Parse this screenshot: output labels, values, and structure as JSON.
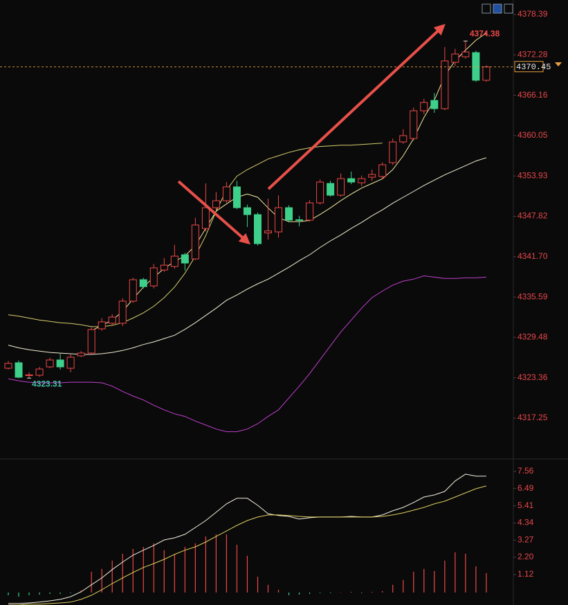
{
  "chart_data": [
    {
      "type": "candlestick",
      "ylim": [
        4311.38,
        4380.59
      ],
      "yticks": [
        4378.39,
        4372.28,
        4366.16,
        4360.05,
        4353.93,
        4347.82,
        {
          "value": 4341.7,
          "label": "4341.70"
        },
        4335.59,
        4329.48,
        4323.36,
        4317.25
      ],
      "up_color": "#f04848",
      "down_color": "#3ed08a",
      "tick_color": "#e8464a",
      "current_price": 4370.45,
      "current_color": "#e8a040",
      "high_label": 4374.38,
      "low_label": 4323.31,
      "high_color": "#f04848",
      "low_color": "#46c0a8",
      "open": [
        4324.8,
        4325.64,
        4323.7,
        4323.75,
        4325.01,
        4326.06,
        4324.8,
        4326.69,
        4327.11,
        4330.78,
        4331.62,
        4331.62,
        4334.97,
        4338.22,
        4337.28,
        4339.69,
        4340.22,
        4342.0,
        4341.37,
        4345.98,
        4349.13,
        4350.18,
        4352.28,
        4349.13,
        4348.08,
        4345.3,
        4345.46,
        4349.13,
        4347.3,
        4347.24,
        4349.86,
        4352.8,
        4351.02,
        4353.53,
        4352.9,
        4353.74,
        4353.85,
        4355.95,
        4359.09,
        4359.62,
        4363.81,
        4365.38,
        4364.13,
        4371.15,
        4371.99,
        4372.62,
        4368.43
      ],
      "high": [
        4325.9,
        4326.0,
        4324.2,
        4325.0,
        4326.4,
        4327.0,
        4326.9,
        4327.4,
        4331.0,
        4332.4,
        4333.0,
        4335.4,
        4338.5,
        4338.5,
        4340.6,
        4341.5,
        4343.5,
        4342.3,
        4347.6,
        4352.8,
        4351.5,
        4353.0,
        4353.2,
        4349.6,
        4348.4,
        4350.5,
        4351.0,
        4349.5,
        4347.9,
        4350.3,
        4353.4,
        4353.2,
        4354.3,
        4354.6,
        4354.0,
        4354.9,
        4356.0,
        4359.6,
        4361.0,
        4364.3,
        4365.6,
        4366.5,
        4373.46,
        4373.2,
        4374.38,
        4372.9,
        4370.7
      ],
      "low": [
        4324.6,
        4323.3,
        4323.31,
        4323.5,
        4324.8,
        4324.6,
        4324.2,
        4326.5,
        4326.9,
        4330.5,
        4331.4,
        4331.2,
        4334.7,
        4336.9,
        4336.9,
        4339.4,
        4339.9,
        4339.6,
        4341.2,
        4345.5,
        4348.8,
        4349.9,
        4348.9,
        4346.2,
        4343.4,
        4344.3,
        4344.6,
        4346.9,
        4346.3,
        4347.0,
        4349.6,
        4350.8,
        4350.8,
        4352.7,
        4352.4,
        4353.2,
        4353.4,
        4355.6,
        4358.8,
        4359.3,
        4363.3,
        4363.5,
        4363.9,
        4370.6,
        4371.7,
        4368.2,
        4368.2
      ],
      "close": [
        4325.54,
        4323.44,
        4323.8,
        4324.69,
        4326.06,
        4325.01,
        4326.48,
        4327.11,
        4330.67,
        4331.83,
        4332.56,
        4334.97,
        4338.22,
        4337.17,
        4340.01,
        4340.42,
        4341.79,
        4340.74,
        4346.51,
        4349.13,
        4350.18,
        4352.28,
        4349.13,
        4348.08,
        4343.68,
        4345.6,
        4349.13,
        4347.24,
        4347.2,
        4349.86,
        4353.01,
        4351.02,
        4353.53,
        4353.01,
        4353.53,
        4354.16,
        4355.63,
        4359.09,
        4360.04,
        4363.81,
        4365.07,
        4364.13,
        4371.36,
        4372.41,
        4372.72,
        4368.43,
        4370.45
      ],
      "lines": [
        {
          "color": "#d8d070",
          "values": [
            4332.9,
            4332.7,
            4332.4,
            4332.1,
            4331.9,
            4331.7,
            4331.6,
            4331.4,
            4331.1,
            4331.1,
            4331.3,
            4331.7,
            4332.4,
            4333.2,
            4334.2,
            4335.5,
            4337.1,
            4339.2,
            4341.8,
            4344.9,
            4348.6,
            4351.8,
            4353.9,
            4354.9,
            4355.7,
            4356.5,
            4357.0,
            4357.5,
            4357.9,
            4358.2,
            4358.4,
            4358.5,
            4358.6,
            4358.6,
            4358.7,
            4358.8,
            4358.9,
            null,
            null,
            null,
            null,
            null,
            null,
            null,
            null,
            null,
            null
          ]
        },
        {
          "color": "#f0eaa0",
          "values": [
            null,
            null,
            null,
            null,
            null,
            null,
            null,
            null,
            4330.5,
            4331.3,
            4332.1,
            4333.4,
            4335.3,
            4337.1,
            4338.6,
            4339.9,
            4341.0,
            4341.8,
            4343.4,
            4346.0,
            4348.6,
            4349.7,
            4350.7,
            4351.2,
            4350.7,
            4349.1,
            4347.6,
            4347.0,
            4347.0,
            4347.2,
            4348.1,
            4349.1,
            4350.2,
            4351.2,
            4352.1,
            4352.8,
            4353.5,
            4354.9,
            4357.0,
            4359.6,
            4362.8,
            4365.4,
            4369.1,
            4371.4,
            4373.0,
            4374.5,
            4375.6
          ]
        },
        {
          "color": "#f4f0d8",
          "values": [
            4328.3,
            4327.9,
            4327.6,
            4327.4,
            4327.2,
            4327.1,
            4327.0,
            4326.9,
            4326.9,
            4327.0,
            4327.2,
            4327.5,
            4327.9,
            4328.4,
            4328.8,
            4329.3,
            4329.8,
            4330.7,
            4331.7,
            4332.8,
            4333.9,
            4335.1,
            4335.9,
            4336.8,
            4337.6,
            4338.3,
            4339.2,
            4340.1,
            4341.1,
            4342.0,
            4343.1,
            4344.1,
            4345.0,
            4346.0,
            4346.9,
            4347.9,
            4348.8,
            4349.8,
            4350.7,
            4351.6,
            4352.5,
            4353.3,
            4354.1,
            4354.8,
            4355.5,
            4356.2,
            4356.7
          ]
        },
        {
          "color": "#c040d0",
          "values": [
            4323.2,
            4322.9,
            4322.7,
            4322.6,
            4322.6,
            4322.6,
            4322.7,
            4322.7,
            4322.7,
            4322.6,
            4322.1,
            4321.3,
            4320.6,
            4320.0,
            4319.2,
            4318.5,
            4317.9,
            4317.5,
            4316.8,
            4316.2,
            4315.6,
            4315.2,
            4315.2,
            4315.6,
            4316.4,
            4317.5,
            4318.5,
            4320.3,
            4322.1,
            4324.0,
            4326.1,
            4328.2,
            4330.3,
            4332.1,
            4333.9,
            4335.5,
            4336.5,
            4337.4,
            4338.0,
            4338.3,
            4338.8,
            4338.6,
            4338.4,
            4338.4,
            4338.5,
            4338.5,
            4338.6
          ]
        }
      ]
    },
    {
      "type": "combo",
      "ylim": [
        -0.78,
        8.12
      ],
      "yticks": [
        7.56,
        6.49,
        5.41,
        4.34,
        3.27,
        {
          "value": 2.2,
          "label": "2.20"
        },
        1.12
      ],
      "tick_color": "#e8464a",
      "up_color": "#f04848",
      "down_color": "#3ed08a",
      "series": [
        {
          "kind": "bar",
          "values": [
            -0.17,
            -0.26,
            -0.17,
            -0.13,
            -0.09,
            -0.09,
            -0.04,
            0.13,
            1.3,
            1.47,
            1.99,
            2.42,
            2.72,
            2.85,
            3.07,
            2.64,
            2.42,
            2.85,
            3.07,
            3.5,
            3.63,
            3.63,
            2.98,
            2.29,
            0.99,
            0.48,
            0.17,
            -0.17,
            -0.13,
            -0.09,
            -0.04,
            -0.04,
            0.02,
            0.04,
            -0.04,
            0.04,
            0.09,
            0.48,
            0.78,
            1.3,
            1.47,
            1.34,
            1.99,
            2.51,
            2.42,
            1.64,
            1.21
          ]
        },
        {
          "kind": "line",
          "color": "#f4f0e0",
          "values": [
            -0.69,
            -0.69,
            -0.65,
            -0.6,
            -0.52,
            -0.43,
            -0.26,
            0.04,
            0.48,
            0.91,
            1.43,
            1.9,
            2.33,
            2.64,
            2.94,
            3.28,
            3.41,
            3.63,
            4.06,
            4.49,
            5.01,
            5.53,
            5.88,
            5.88,
            5.44,
            4.92,
            4.8,
            4.75,
            4.58,
            4.67,
            4.71,
            4.71,
            4.71,
            4.75,
            4.71,
            4.71,
            4.84,
            5.1,
            5.31,
            5.62,
            5.96,
            6.09,
            6.31,
            6.96,
            7.39,
            7.26,
            7.26
          ]
        },
        {
          "kind": "line",
          "color": "#e0d060",
          "values": [
            -0.78,
            -0.78,
            -0.73,
            -0.73,
            -0.69,
            -0.65,
            -0.6,
            -0.43,
            -0.17,
            0.17,
            0.56,
            0.91,
            1.25,
            1.56,
            1.81,
            2.07,
            2.38,
            2.64,
            2.85,
            3.15,
            3.5,
            3.84,
            4.19,
            4.49,
            4.71,
            4.84,
            4.84,
            4.8,
            4.75,
            4.71,
            4.71,
            4.71,
            4.71,
            4.71,
            4.71,
            4.71,
            4.75,
            4.84,
            4.97,
            5.14,
            5.31,
            5.53,
            5.7,
            5.96,
            6.22,
            6.48,
            6.65
          ]
        }
      ]
    }
  ]
}
